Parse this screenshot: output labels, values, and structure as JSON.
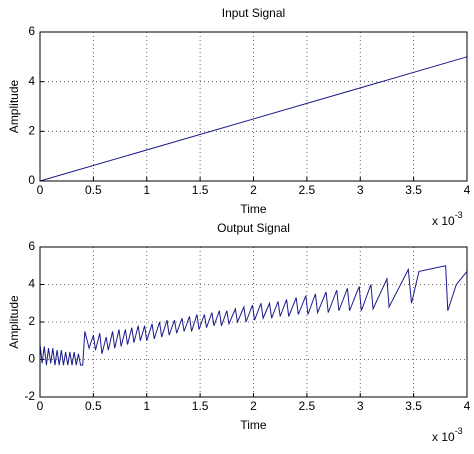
{
  "chart_data": [
    {
      "type": "line",
      "title": "Input Signal",
      "xlabel": "Time",
      "ylabel": "Amplitude",
      "x_exponent_base": "x 10",
      "x_exponent": "-3",
      "x": [
        0,
        4
      ],
      "values": [
        0,
        5
      ],
      "color": "#1a1a8c",
      "xlim": [
        0,
        4
      ],
      "ylim": [
        0,
        6
      ],
      "xticks": [
        0,
        0.5,
        1,
        1.5,
        2,
        2.5,
        3,
        3.5,
        4
      ],
      "yticks": [
        0,
        2,
        4,
        6
      ],
      "grid": true
    },
    {
      "type": "line",
      "title": "Output Signal",
      "xlabel": "Time",
      "ylabel": "Amplitude",
      "x_exponent_base": "x 10",
      "x_exponent": "-3",
      "x": [
        0,
        0.02,
        0.04,
        0.06,
        0.08,
        0.1,
        0.12,
        0.14,
        0.16,
        0.18,
        0.2,
        0.22,
        0.24,
        0.26,
        0.28,
        0.3,
        0.32,
        0.34,
        0.36,
        0.38,
        0.4,
        0.42,
        0.46,
        0.5,
        0.52,
        0.56,
        0.58,
        0.62,
        0.64,
        0.68,
        0.7,
        0.74,
        0.76,
        0.8,
        0.82,
        0.86,
        0.88,
        0.92,
        0.94,
        0.98,
        1.0,
        1.05,
        1.07,
        1.12,
        1.14,
        1.19,
        1.21,
        1.26,
        1.28,
        1.33,
        1.35,
        1.4,
        1.42,
        1.47,
        1.49,
        1.54,
        1.56,
        1.61,
        1.63,
        1.68,
        1.7,
        1.75,
        1.77,
        1.83,
        1.85,
        1.91,
        1.93,
        1.99,
        2.01,
        2.07,
        2.09,
        2.15,
        2.17,
        2.23,
        2.25,
        2.31,
        2.33,
        2.4,
        2.42,
        2.49,
        2.51,
        2.58,
        2.6,
        2.68,
        2.7,
        2.78,
        2.8,
        2.88,
        2.9,
        2.99,
        3.01,
        3.1,
        3.12,
        3.25,
        3.27,
        3.45,
        3.48,
        3.55,
        3.8,
        3.82,
        3.9,
        4.0
      ],
      "values": [
        0.8,
        -0.2,
        0.7,
        -0.3,
        0.6,
        -0.2,
        0.6,
        -0.3,
        0.5,
        -0.3,
        0.5,
        -0.3,
        0.4,
        -0.3,
        0.4,
        -0.3,
        0.4,
        -0.3,
        0.3,
        -0.3,
        -0.3,
        1.5,
        0.6,
        1.3,
        0.5,
        1.4,
        0.3,
        1.2,
        0.5,
        1.5,
        0.6,
        1.6,
        0.7,
        1.6,
        0.8,
        1.7,
        0.9,
        1.8,
        1.0,
        1.8,
        1.0,
        1.9,
        1.1,
        2.0,
        1.2,
        2.1,
        1.3,
        2.1,
        1.4,
        2.2,
        1.5,
        2.3,
        1.5,
        2.4,
        1.6,
        2.4,
        1.7,
        2.5,
        1.8,
        2.6,
        1.8,
        2.6,
        1.9,
        2.7,
        2.0,
        2.8,
        2.0,
        2.9,
        2.1,
        3.0,
        2.2,
        3.0,
        2.2,
        3.1,
        2.3,
        3.2,
        2.3,
        3.3,
        2.4,
        3.4,
        2.4,
        3.5,
        2.5,
        3.6,
        2.5,
        3.7,
        2.6,
        3.8,
        2.6,
        3.9,
        2.6,
        4.0,
        2.7,
        4.3,
        2.8,
        4.8,
        3.0,
        4.7,
        5.0,
        2.6,
        4.0,
        4.7
      ],
      "color": "#1a1a8c",
      "xlim": [
        0,
        4
      ],
      "ylim": [
        -2,
        6
      ],
      "xticks": [
        0,
        0.5,
        1,
        1.5,
        2,
        2.5,
        3,
        3.5,
        4
      ],
      "yticks": [
        -2,
        0,
        2,
        4,
        6
      ],
      "grid": true
    }
  ]
}
